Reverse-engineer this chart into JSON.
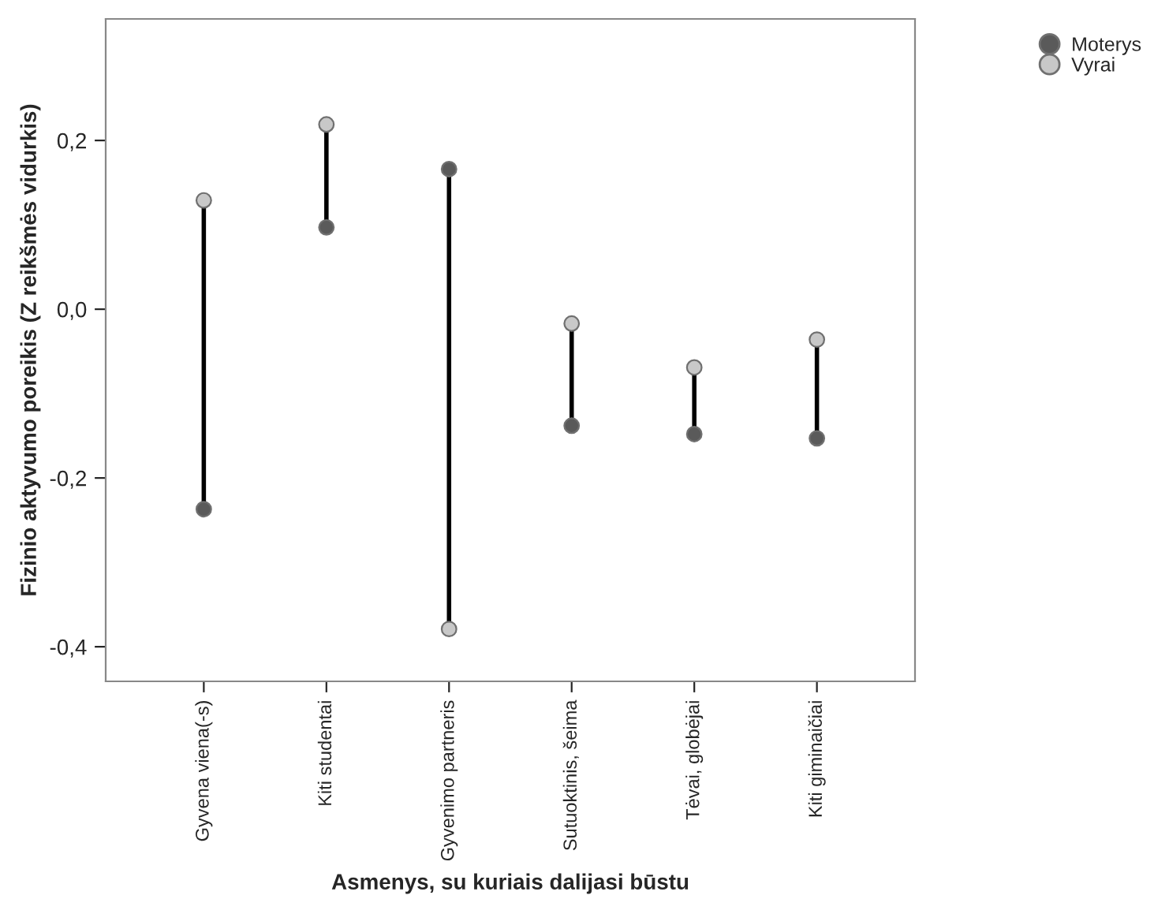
{
  "chart_data": {
    "type": "scatter",
    "xlabel": "Asmenys, su kuriais dalijasi būstu",
    "ylabel": "Fizinio aktyvumo poreikis (Z reikšmės vidurkis)",
    "categories": [
      "Gyvena viena(-s)",
      "Kiti studentai",
      "Gyvenimo partneris",
      "Sutuoktinis, šeima",
      "Tėvai, globėjai",
      "Kiti giminaičiai"
    ],
    "series": [
      {
        "name": "Moterys",
        "color": "#5a5a5a",
        "values": [
          -0.237,
          0.097,
          0.166,
          -0.138,
          -0.148,
          -0.153
        ]
      },
      {
        "name": "Vyrai",
        "color": "#c8c8c8",
        "values": [
          0.129,
          0.219,
          -0.379,
          -0.017,
          -0.069,
          -0.036
        ]
      }
    ],
    "ylim": [
      -0.441,
      0.344
    ],
    "yticks": [
      {
        "value": -0.4,
        "label": "-0,4"
      },
      {
        "value": -0.2,
        "label": "-0,2"
      },
      {
        "value": 0.0,
        "label": "0,0"
      },
      {
        "value": 0.2,
        "label": "0,2"
      }
    ],
    "marker": "circle",
    "legend": "top right",
    "grid": false
  }
}
